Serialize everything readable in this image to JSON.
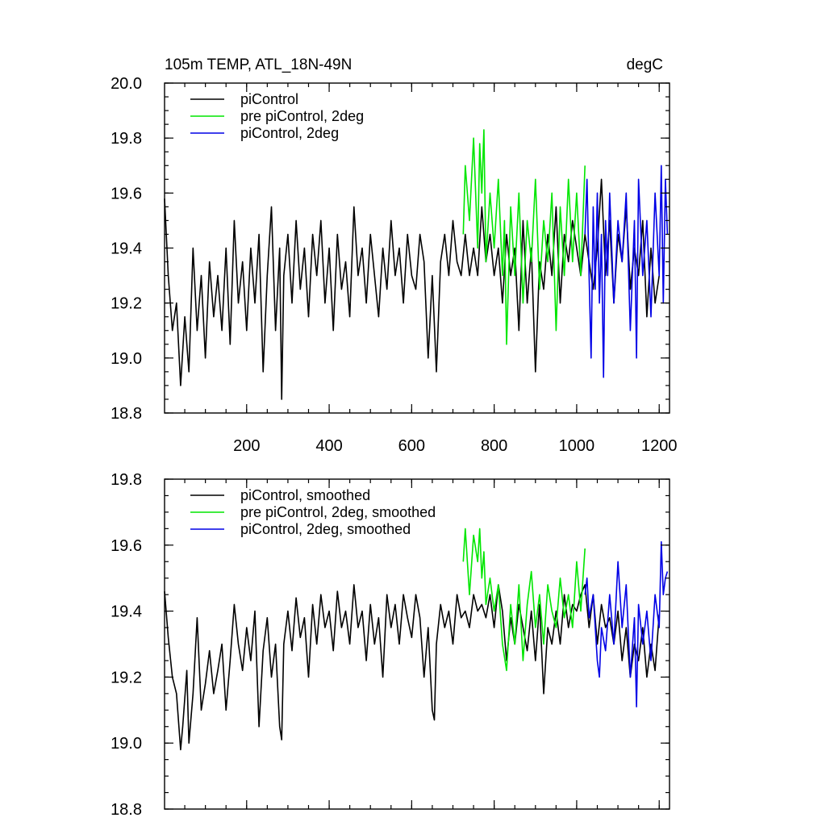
{
  "chart_data": [
    {
      "type": "line",
      "title": "105m TEMP, ATL_18N-49N",
      "units": "degC",
      "xlabel": "",
      "ylabel": "",
      "xlim": [
        1,
        1225
      ],
      "ylim": [
        18.8,
        20.0
      ],
      "x_ticks": [
        200,
        400,
        600,
        800,
        1000,
        1200
      ],
      "x_tick_labels": [
        "200",
        "400",
        "600",
        "800",
        "1000",
        "1200"
      ],
      "y_ticks": [
        18.8,
        19.0,
        19.2,
        19.4,
        19.6,
        19.8,
        20.0
      ],
      "y_tick_labels": [
        "18.8",
        "19.0",
        "19.2",
        "19.4",
        "19.6",
        "19.8",
        "20.0"
      ],
      "grid": false,
      "legend_position": "top-left",
      "series": [
        {
          "name": "piControl",
          "color": "#000000",
          "x": [
            1,
            10,
            20,
            30,
            40,
            50,
            60,
            70,
            80,
            90,
            100,
            110,
            120,
            130,
            140,
            150,
            160,
            170,
            180,
            190,
            200,
            210,
            220,
            230,
            240,
            250,
            260,
            270,
            280,
            285,
            290,
            300,
            310,
            320,
            330,
            340,
            350,
            360,
            370,
            380,
            390,
            400,
            410,
            420,
            430,
            440,
            450,
            460,
            470,
            480,
            490,
            500,
            510,
            520,
            530,
            540,
            550,
            560,
            570,
            580,
            590,
            600,
            610,
            620,
            630,
            640,
            650,
            660,
            670,
            680,
            690,
            700,
            710,
            720,
            730,
            740,
            750,
            760,
            770,
            780,
            790,
            800,
            810,
            820,
            830,
            840,
            850,
            860,
            870,
            880,
            890,
            900,
            910,
            920,
            930,
            940,
            950,
            960,
            970,
            980,
            990,
            1000,
            1010,
            1020,
            1030,
            1040,
            1050,
            1060,
            1070,
            1080,
            1090,
            1100,
            1110,
            1120,
            1130,
            1140,
            1150,
            1160,
            1170,
            1180,
            1190,
            1200
          ],
          "values": [
            19.58,
            19.3,
            19.1,
            19.2,
            18.9,
            19.15,
            18.95,
            19.4,
            19.1,
            19.3,
            19.0,
            19.35,
            19.15,
            19.3,
            19.1,
            19.4,
            19.05,
            19.5,
            19.2,
            19.35,
            19.1,
            19.4,
            19.2,
            19.45,
            18.95,
            19.3,
            19.55,
            19.1,
            19.4,
            18.85,
            19.3,
            19.45,
            19.2,
            19.5,
            19.25,
            19.4,
            19.15,
            19.45,
            19.3,
            19.5,
            19.2,
            19.4,
            19.1,
            19.45,
            19.25,
            19.35,
            19.15,
            19.55,
            19.3,
            19.4,
            19.2,
            19.45,
            19.3,
            19.15,
            19.4,
            19.25,
            19.5,
            19.3,
            19.4,
            19.2,
            19.45,
            19.3,
            19.25,
            19.45,
            19.35,
            19.0,
            19.3,
            18.95,
            19.35,
            19.45,
            19.3,
            19.5,
            19.35,
            19.3,
            19.45,
            19.3,
            19.4,
            19.3,
            19.55,
            19.35,
            19.45,
            19.3,
            19.4,
            19.2,
            19.45,
            19.3,
            19.4,
            19.1,
            19.5,
            19.2,
            19.4,
            18.95,
            19.35,
            19.25,
            19.45,
            19.3,
            19.55,
            19.2,
            19.45,
            19.35,
            19.5,
            19.4,
            19.3,
            19.45,
            19.35,
            19.25,
            19.4,
            19.65,
            19.3,
            19.5,
            19.2,
            19.45,
            19.35,
            19.55,
            19.25,
            19.4,
            19.3,
            19.5,
            19.15,
            19.4,
            19.2,
            19.3
          ]
        },
        {
          "name": "pre piControl, 2deg",
          "color": "#00e600",
          "x": [
            725,
            730,
            740,
            750,
            760,
            765,
            770,
            775,
            780,
            790,
            800,
            810,
            820,
            825,
            830,
            840,
            850,
            860,
            870,
            880,
            890,
            900,
            910,
            920,
            930,
            940,
            950,
            960,
            970,
            980,
            990,
            1000,
            1010,
            1020
          ],
          "values": [
            19.45,
            19.7,
            19.5,
            19.8,
            19.4,
            19.78,
            19.6,
            19.83,
            19.35,
            19.6,
            19.4,
            19.65,
            19.3,
            19.5,
            19.05,
            19.55,
            19.3,
            19.6,
            19.2,
            19.5,
            19.35,
            19.65,
            19.25,
            19.5,
            19.35,
            19.6,
            19.1,
            19.55,
            19.3,
            19.65,
            19.35,
            19.6,
            19.3,
            19.7
          ]
        },
        {
          "name": "piControl, 2deg",
          "color": "#0000e6",
          "x": [
            1020,
            1025,
            1030,
            1035,
            1040,
            1045,
            1050,
            1055,
            1060,
            1065,
            1070,
            1075,
            1080,
            1090,
            1100,
            1110,
            1120,
            1130,
            1140,
            1145,
            1150,
            1160,
            1170,
            1180,
            1190,
            1200,
            1205,
            1210,
            1215,
            1220
          ],
          "values": [
            19.45,
            19.65,
            19.3,
            19.0,
            19.55,
            19.25,
            19.6,
            19.2,
            19.45,
            18.93,
            19.5,
            19.3,
            19.6,
            19.2,
            19.5,
            19.35,
            19.6,
            19.1,
            19.5,
            19.0,
            19.65,
            19.3,
            19.5,
            19.15,
            19.6,
            19.3,
            19.7,
            19.2,
            19.65,
            19.45
          ]
        }
      ]
    },
    {
      "type": "line",
      "title": "",
      "xlabel": "",
      "ylabel": "",
      "xlim": [
        1,
        1225
      ],
      "ylim": [
        18.8,
        19.8
      ],
      "x_ticks": [
        200,
        400,
        600,
        800,
        1000,
        1200
      ],
      "x_tick_labels": [],
      "y_ticks": [
        18.8,
        19.0,
        19.2,
        19.4,
        19.6,
        19.8
      ],
      "y_tick_labels": [
        "18.8",
        "19.0",
        "19.2",
        "19.4",
        "19.6",
        "19.8"
      ],
      "grid": false,
      "legend_position": "top-left",
      "series": [
        {
          "name": "piControl, smoothed",
          "color": "#000000",
          "x": [
            1,
            10,
            20,
            30,
            40,
            45,
            55,
            60,
            70,
            80,
            90,
            100,
            110,
            120,
            130,
            140,
            150,
            160,
            170,
            180,
            190,
            200,
            210,
            220,
            230,
            240,
            250,
            260,
            270,
            280,
            285,
            290,
            300,
            310,
            320,
            330,
            340,
            350,
            360,
            370,
            380,
            390,
            400,
            410,
            420,
            430,
            440,
            450,
            460,
            470,
            480,
            490,
            500,
            510,
            520,
            530,
            540,
            550,
            560,
            570,
            580,
            590,
            600,
            610,
            620,
            630,
            640,
            650,
            655,
            660,
            670,
            680,
            690,
            700,
            710,
            720,
            730,
            740,
            750,
            760,
            770,
            780,
            790,
            800,
            810,
            820,
            830,
            840,
            850,
            860,
            870,
            880,
            890,
            900,
            910,
            920,
            930,
            940,
            950,
            960,
            970,
            980,
            990,
            1000,
            1010,
            1020,
            1030,
            1040,
            1050,
            1060,
            1070,
            1080,
            1090,
            1100,
            1110,
            1120,
            1130,
            1140,
            1150,
            1160,
            1170,
            1180,
            1190,
            1200
          ],
          "values": [
            19.46,
            19.32,
            19.2,
            19.15,
            18.98,
            19.05,
            19.22,
            19.0,
            19.15,
            19.38,
            19.1,
            19.18,
            19.28,
            19.15,
            19.22,
            19.3,
            19.1,
            19.25,
            19.42,
            19.3,
            19.22,
            19.35,
            19.25,
            19.4,
            19.05,
            19.28,
            19.38,
            19.2,
            19.3,
            19.05,
            19.01,
            19.3,
            19.4,
            19.28,
            19.44,
            19.32,
            19.38,
            19.2,
            19.42,
            19.3,
            19.45,
            19.35,
            19.4,
            19.28,
            19.46,
            19.35,
            19.4,
            19.3,
            19.48,
            19.35,
            19.4,
            19.25,
            19.42,
            19.3,
            19.38,
            19.2,
            19.45,
            19.35,
            19.42,
            19.3,
            19.45,
            19.38,
            19.32,
            19.45,
            19.38,
            19.2,
            19.35,
            19.1,
            19.07,
            19.3,
            19.42,
            19.35,
            19.4,
            19.3,
            19.45,
            19.38,
            19.4,
            19.35,
            19.45,
            19.4,
            19.42,
            19.38,
            19.45,
            19.35,
            19.48,
            19.4,
            19.25,
            19.38,
            19.3,
            19.42,
            19.35,
            19.28,
            19.4,
            19.25,
            19.42,
            19.15,
            19.35,
            19.3,
            19.4,
            19.3,
            19.45,
            19.35,
            19.42,
            19.4,
            19.45,
            19.48,
            19.35,
            19.45,
            19.3,
            19.42,
            19.35,
            19.38,
            19.3,
            19.4,
            19.25,
            19.35,
            19.2,
            19.3,
            19.25,
            19.35,
            19.2,
            19.3,
            19.22,
            19.39
          ]
        },
        {
          "name": "pre piControl, 2deg, smoothed",
          "color": "#00e600",
          "x": [
            725,
            730,
            740,
            750,
            760,
            765,
            770,
            775,
            780,
            790,
            800,
            810,
            820,
            830,
            840,
            850,
            860,
            870,
            880,
            890,
            900,
            910,
            920,
            930,
            940,
            950,
            960,
            970,
            980,
            990,
            1000,
            1010,
            1020
          ],
          "values": [
            19.55,
            19.65,
            19.45,
            19.63,
            19.55,
            19.65,
            19.5,
            19.58,
            19.42,
            19.5,
            19.4,
            19.48,
            19.3,
            19.22,
            19.42,
            19.3,
            19.48,
            19.25,
            19.42,
            19.52,
            19.35,
            19.45,
            19.3,
            19.48,
            19.4,
            19.35,
            19.5,
            19.38,
            19.45,
            19.35,
            19.55,
            19.4,
            19.59
          ]
        },
        {
          "name": "piControl, 2deg, smoothed",
          "color": "#0000e6",
          "x": [
            1020,
            1025,
            1030,
            1040,
            1050,
            1055,
            1060,
            1070,
            1080,
            1090,
            1100,
            1110,
            1120,
            1130,
            1140,
            1145,
            1150,
            1160,
            1170,
            1180,
            1190,
            1200,
            1205,
            1210,
            1215,
            1220
          ],
          "values": [
            19.45,
            19.5,
            19.38,
            19.45,
            19.25,
            19.2,
            19.35,
            19.28,
            19.45,
            19.3,
            19.55,
            19.35,
            19.48,
            19.2,
            19.38,
            19.11,
            19.42,
            19.3,
            19.4,
            19.25,
            19.45,
            19.35,
            19.61,
            19.45,
            19.5,
            19.52
          ]
        }
      ]
    }
  ]
}
